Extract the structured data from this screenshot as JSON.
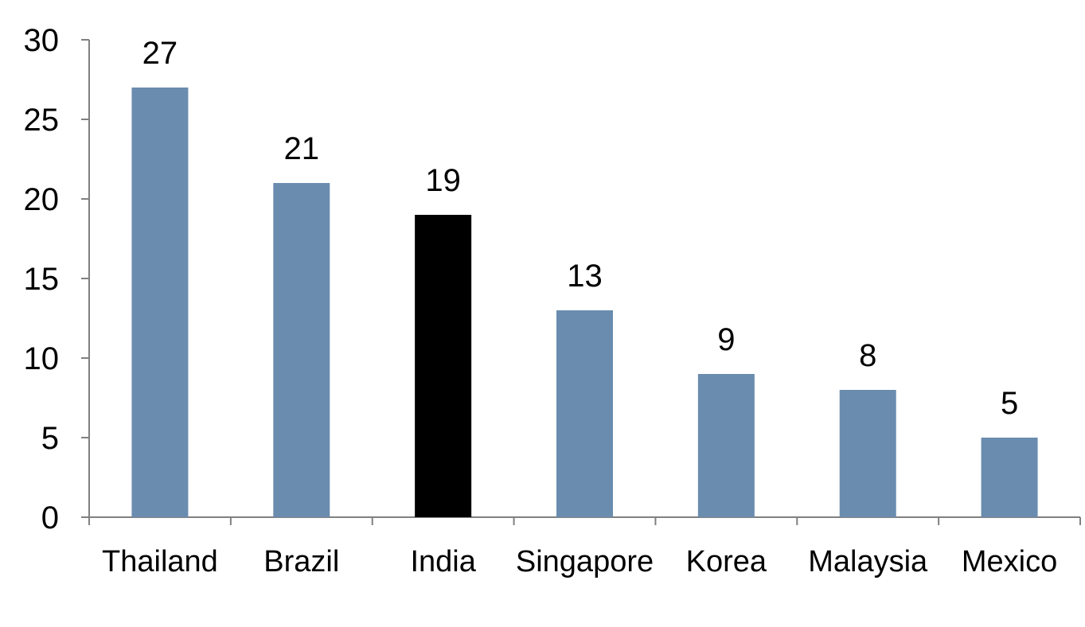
{
  "chart_data": {
    "type": "bar",
    "categories": [
      "Thailand",
      "Brazil",
      "India",
      "Singapore",
      "Korea",
      "Malaysia",
      "Mexico"
    ],
    "values": [
      27,
      21,
      19,
      13,
      9,
      8,
      5
    ],
    "data_labels": [
      "27",
      "21",
      "19",
      "13",
      "9",
      "8",
      "5"
    ],
    "highlight": "India",
    "colors": {
      "bar": "#6a8caf",
      "highlight": "#000000",
      "axis": "#808080"
    },
    "ylim": [
      0,
      30
    ],
    "yticks": [
      0,
      5,
      10,
      15,
      20,
      25,
      30
    ],
    "ytick_labels": [
      "0",
      "5",
      "10",
      "15",
      "20",
      "25",
      "30"
    ],
    "grid": false,
    "legend": "none"
  }
}
